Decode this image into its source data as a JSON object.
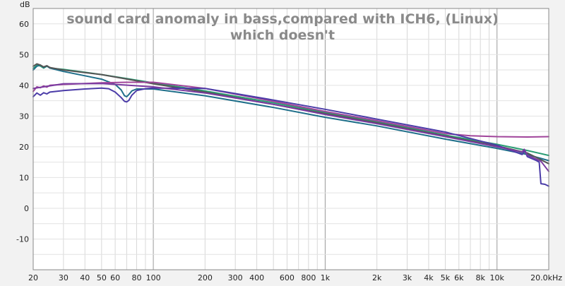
{
  "chart_data": {
    "type": "line",
    "title_lines": [
      "sound card anomaly in bass,compared with ICH6, (Linux)",
      "which doesn't"
    ],
    "ylabel": "dB",
    "x_scale": "log",
    "xlim": [
      20,
      20000
    ],
    "ylim": [
      -20,
      65
    ],
    "grid": true,
    "y_ticks": [
      60,
      50,
      40,
      30,
      20,
      10,
      0,
      -10
    ],
    "x_tick_labels": [
      {
        "x": 20,
        "label": "20"
      },
      {
        "x": 30,
        "label": "30"
      },
      {
        "x": 40,
        "label": "40"
      },
      {
        "x": 50,
        "label": "50"
      },
      {
        "x": 60,
        "label": "60"
      },
      {
        "x": 80,
        "label": "80"
      },
      {
        "x": 100,
        "label": "100"
      },
      {
        "x": 200,
        "label": "200"
      },
      {
        "x": 300,
        "label": "300"
      },
      {
        "x": 400,
        "label": "400"
      },
      {
        "x": 600,
        "label": "600"
      },
      {
        "x": 800,
        "label": "800"
      },
      {
        "x": 1000,
        "label": "1k"
      },
      {
        "x": 2000,
        "label": "2k"
      },
      {
        "x": 3000,
        "label": "3k"
      },
      {
        "x": 4000,
        "label": "4k"
      },
      {
        "x": 5000,
        "label": "5k"
      },
      {
        "x": 6000,
        "label": "6k"
      },
      {
        "x": 8000,
        "label": "8k"
      },
      {
        "x": 10000,
        "label": "10k"
      },
      {
        "x": 20000,
        "label": "20.0kHz"
      }
    ],
    "series": [
      {
        "color": "#2a9d74",
        "points": [
          [
            20,
            45.5
          ],
          [
            21,
            46.5
          ],
          [
            22,
            46.3
          ],
          [
            23,
            45.6
          ],
          [
            24,
            46.2
          ],
          [
            25,
            45.8
          ],
          [
            26,
            45.5
          ],
          [
            30,
            45.2
          ],
          [
            50,
            43.5
          ],
          [
            70,
            42.2
          ],
          [
            100,
            40.8
          ],
          [
            200,
            38.2
          ],
          [
            500,
            34.3
          ],
          [
            1000,
            31.2
          ],
          [
            2000,
            28.2
          ],
          [
            5000,
            23.8
          ],
          [
            10000,
            20.8
          ],
          [
            15000,
            18.8
          ],
          [
            20000,
            17.2
          ]
        ]
      },
      {
        "color": "#1f6f8a",
        "points": [
          [
            20,
            45.0
          ],
          [
            21,
            46.2
          ],
          [
            22,
            46.6
          ],
          [
            23,
            45.8
          ],
          [
            24,
            46.3
          ],
          [
            25,
            45.6
          ],
          [
            30,
            44.5
          ],
          [
            50,
            42.0
          ],
          [
            60,
            40.3
          ],
          [
            65,
            38.5
          ],
          [
            68,
            36.6
          ],
          [
            70,
            36.3
          ],
          [
            72,
            37.0
          ],
          [
            75,
            38.2
          ],
          [
            80,
            38.8
          ],
          [
            100,
            38.8
          ],
          [
            200,
            36.6
          ],
          [
            500,
            32.8
          ],
          [
            1000,
            29.6
          ],
          [
            2000,
            26.8
          ],
          [
            5000,
            22.5
          ],
          [
            10000,
            19.5
          ],
          [
            15000,
            17.5
          ],
          [
            20000,
            15.5
          ]
        ]
      },
      {
        "color": "#555555",
        "points": [
          [
            20,
            46.2
          ],
          [
            21,
            47.0
          ],
          [
            22,
            46.6
          ],
          [
            23,
            46.0
          ],
          [
            24,
            46.4
          ],
          [
            25,
            45.8
          ],
          [
            30,
            45.0
          ],
          [
            50,
            43.5
          ],
          [
            100,
            40.5
          ],
          [
            200,
            37.8
          ],
          [
            500,
            33.8
          ],
          [
            1000,
            30.8
          ],
          [
            2000,
            27.8
          ],
          [
            5000,
            23.5
          ],
          [
            10000,
            20.3
          ],
          [
            15000,
            18.0
          ],
          [
            20000,
            14.5
          ]
        ]
      },
      {
        "color": "#a0449a",
        "points": [
          [
            20,
            38.0
          ],
          [
            21,
            39.5
          ],
          [
            22,
            39.2
          ],
          [
            23,
            39.8
          ],
          [
            24,
            39.4
          ],
          [
            25,
            40.0
          ],
          [
            30,
            40.3
          ],
          [
            50,
            40.8
          ],
          [
            70,
            41.0
          ],
          [
            100,
            41.0
          ],
          [
            200,
            39.0
          ],
          [
            500,
            34.8
          ],
          [
            1000,
            31.5
          ],
          [
            2000,
            28.5
          ],
          [
            5000,
            24.3
          ],
          [
            7000,
            23.6
          ],
          [
            10000,
            23.3
          ],
          [
            15000,
            23.2
          ],
          [
            20000,
            23.3
          ]
        ]
      },
      {
        "color": "#4b3ca8",
        "points": [
          [
            20,
            36.3
          ],
          [
            21,
            37.5
          ],
          [
            22,
            36.8
          ],
          [
            23,
            37.6
          ],
          [
            24,
            37.2
          ],
          [
            25,
            37.8
          ],
          [
            30,
            38.3
          ],
          [
            40,
            38.8
          ],
          [
            50,
            39.1
          ],
          [
            55,
            38.9
          ],
          [
            60,
            37.8
          ],
          [
            65,
            36.0
          ],
          [
            68,
            34.8
          ],
          [
            70,
            34.6
          ],
          [
            72,
            35.1
          ],
          [
            75,
            36.8
          ],
          [
            80,
            38.3
          ],
          [
            90,
            38.9
          ],
          [
            100,
            39.1
          ],
          [
            200,
            39.0
          ],
          [
            500,
            35.2
          ],
          [
            1000,
            32.2
          ],
          [
            2000,
            29.0
          ],
          [
            5000,
            24.8
          ],
          [
            10000,
            20.5
          ],
          [
            14000,
            17.5
          ],
          [
            14500,
            18.8
          ],
          [
            15000,
            16.8
          ],
          [
            17000,
            15.5
          ],
          [
            17600,
            15.0
          ],
          [
            18000,
            8.0
          ],
          [
            19000,
            7.8
          ],
          [
            20000,
            7.2
          ]
        ]
      },
      {
        "color": "#7a3aa0",
        "points": [
          [
            20,
            39.0
          ],
          [
            30,
            40.5
          ],
          [
            50,
            40.6
          ],
          [
            100,
            39.5
          ],
          [
            200,
            37.5
          ],
          [
            500,
            33.8
          ],
          [
            1000,
            30.5
          ],
          [
            2000,
            27.5
          ],
          [
            5000,
            23.3
          ],
          [
            10000,
            20.0
          ],
          [
            14000,
            18.3
          ],
          [
            14400,
            19.2
          ],
          [
            15000,
            17.3
          ],
          [
            18000,
            15.3
          ],
          [
            20000,
            12.0
          ]
        ]
      }
    ]
  }
}
